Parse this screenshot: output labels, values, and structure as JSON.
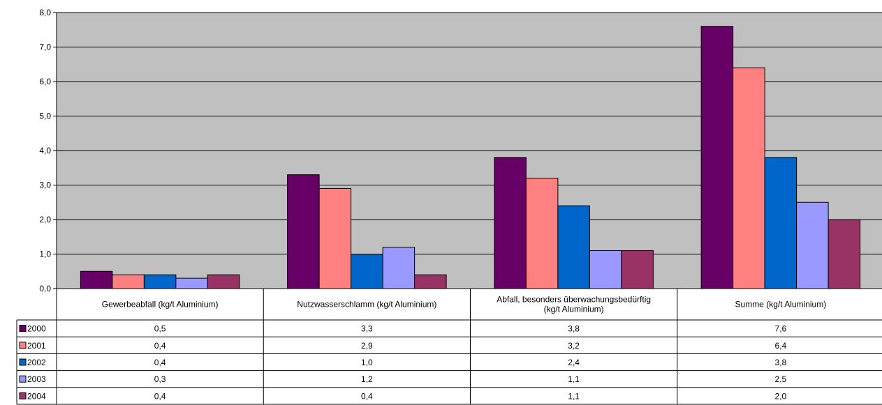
{
  "chart_data": {
    "type": "bar",
    "title": "",
    "xlabel": "",
    "ylabel": "",
    "ylim": [
      0,
      8
    ],
    "yticks": [
      "0,0",
      "1,0",
      "2,0",
      "3,0",
      "4,0",
      "5,0",
      "6,0",
      "7,0",
      "8,0"
    ],
    "grid": true,
    "legend": "data-table",
    "categories": [
      [
        "Gewerbeabfall (kg/t Aluminium)"
      ],
      [
        "Nutzwasserschlamm (kg/t Aluminium)"
      ],
      [
        "Abfall, besonders überwachungsbedürftig",
        "(kg/t Aluminium)"
      ],
      [
        "Summe (kg/t Aluminium)"
      ]
    ],
    "series": [
      {
        "name": "2000",
        "color": "#660066",
        "values": [
          0.5,
          3.3,
          3.8,
          7.6
        ],
        "labels": [
          "0,5",
          "3,3",
          "3,8",
          "7,6"
        ]
      },
      {
        "name": "2001",
        "color": "#FF8080",
        "values": [
          0.4,
          2.9,
          3.2,
          6.4
        ],
        "labels": [
          "0,4",
          "2,9",
          "3,2",
          "6,4"
        ]
      },
      {
        "name": "2002",
        "color": "#0066CC",
        "values": [
          0.4,
          1.0,
          2.4,
          3.8
        ],
        "labels": [
          "0,4",
          "1,0",
          "2,4",
          "3,8"
        ]
      },
      {
        "name": "2003",
        "color": "#9999FF",
        "values": [
          0.3,
          1.2,
          1.1,
          2.5
        ],
        "labels": [
          "0,3",
          "1,2",
          "1,1",
          "2,5"
        ]
      },
      {
        "name": "2004",
        "color": "#993366",
        "values": [
          0.4,
          0.4,
          1.1,
          2.0
        ],
        "labels": [
          "0,4",
          "0,4",
          "1,1",
          "2,0"
        ]
      }
    ],
    "plot_background": "#C0C0C0"
  }
}
